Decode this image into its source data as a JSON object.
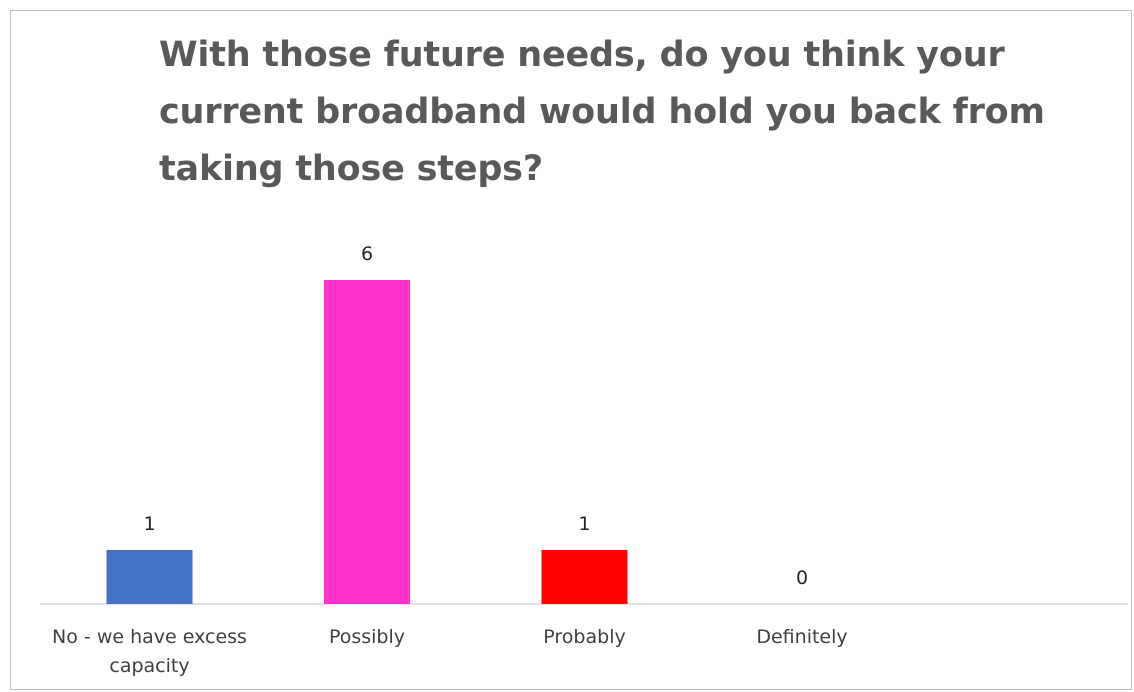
{
  "chart_data": {
    "type": "bar",
    "title": "With those future needs, do you think your current broadband would hold you back from taking those steps?",
    "categories": [
      "No - we have excess capacity",
      "Possibly",
      "Probably",
      "Definitely"
    ],
    "values": [
      1,
      6,
      1,
      0
    ],
    "colors": [
      "#4472c4",
      "#ff33cc",
      "#ff0000",
      "#4472c4"
    ],
    "data_labels": [
      "1",
      "6",
      "1",
      "0"
    ],
    "xlabel": "",
    "ylabel": "",
    "ylim": [
      0,
      6
    ],
    "grid": false,
    "legend": "none"
  }
}
